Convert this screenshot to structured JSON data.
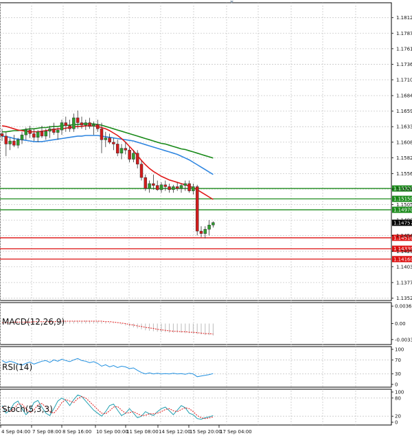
{
  "chart_data": {
    "type": "candlestick",
    "main": {
      "price_axis": {
        "range": [
          1.1348,
          1.1837
        ],
        "ticks": [
          "1.18125",
          "1.17870",
          "1.17615",
          "1.17360",
          "1.17105",
          "1.16845",
          "1.16590",
          "1.16335",
          "1.16080",
          "1.15825",
          "1.15565",
          "1.15310",
          "1.15055",
          "1.14800",
          "1.14545",
          "1.14290",
          "1.14035",
          "1.13775",
          "1.13520"
        ]
      },
      "current_price": "1.14757",
      "levels": [
        {
          "label": "1.15320",
          "value": 1.1532,
          "color": "#1a8a1a"
        },
        {
          "label": "1.15150",
          "value": 1.1515,
          "color": "#1a8a1a"
        },
        {
          "label": "1.14970",
          "value": 1.1497,
          "color": "#1a8a1a"
        },
        {
          "label": "1.14510",
          "value": 1.1451,
          "color": "#dd1111"
        },
        {
          "label": "1.14330",
          "value": 1.1433,
          "color": "#dd1111"
        },
        {
          "label": "1.14160",
          "value": 1.1416,
          "color": "#dd1111"
        }
      ],
      "candles": [
        [
          1.1622,
          1.163,
          1.161,
          1.1618
        ],
        [
          1.1618,
          1.1625,
          1.1585,
          1.1605
        ],
        [
          1.1605,
          1.1615,
          1.1595,
          1.161
        ],
        [
          1.161,
          1.162,
          1.16,
          1.1603
        ],
        [
          1.1603,
          1.1615,
          1.1598,
          1.1612
        ],
        [
          1.1612,
          1.1625,
          1.1605,
          1.162
        ],
        [
          1.162,
          1.1632,
          1.1612,
          1.1628
        ],
        [
          1.1628,
          1.1635,
          1.1615,
          1.1622
        ],
        [
          1.1622,
          1.163,
          1.161,
          1.1616
        ],
        [
          1.1616,
          1.1628,
          1.1608,
          1.1625
        ],
        [
          1.1625,
          1.1635,
          1.1615,
          1.1618
        ],
        [
          1.1618,
          1.163,
          1.1612,
          1.1626
        ],
        [
          1.1626,
          1.1635,
          1.1615,
          1.163
        ],
        [
          1.163,
          1.164,
          1.162,
          1.1624
        ],
        [
          1.1624,
          1.1632,
          1.1612,
          1.1628
        ],
        [
          1.1628,
          1.1645,
          1.162,
          1.164
        ],
        [
          1.164,
          1.165,
          1.1625,
          1.1635
        ],
        [
          1.1635,
          1.1645,
          1.1625,
          1.163
        ],
        [
          1.163,
          1.1655,
          1.1625,
          1.1648
        ],
        [
          1.1648,
          1.166,
          1.163,
          1.164
        ],
        [
          1.164,
          1.165,
          1.163,
          1.1636
        ],
        [
          1.1636,
          1.1645,
          1.1628,
          1.164
        ],
        [
          1.164,
          1.1648,
          1.163,
          1.1634
        ],
        [
          1.1634,
          1.1642,
          1.162,
          1.1637
        ],
        [
          1.1637,
          1.1645,
          1.1625,
          1.163
        ],
        [
          1.163,
          1.164,
          1.159,
          1.1612
        ],
        [
          1.1612,
          1.1625,
          1.16,
          1.1615
        ],
        [
          1.1615,
          1.1622,
          1.1605,
          1.1608
        ],
        [
          1.1608,
          1.1615,
          1.1595,
          1.1605
        ],
        [
          1.1605,
          1.1612,
          1.1585,
          1.159
        ],
        [
          1.159,
          1.1605,
          1.158,
          1.1598
        ],
        [
          1.1598,
          1.1608,
          1.1588,
          1.1595
        ],
        [
          1.1595,
          1.16,
          1.1575,
          1.158
        ],
        [
          1.158,
          1.1595,
          1.1575,
          1.159
        ],
        [
          1.159,
          1.1595,
          1.1565,
          1.1572
        ],
        [
          1.1572,
          1.1578,
          1.1545,
          1.155
        ],
        [
          1.155,
          1.1555,
          1.1528,
          1.1532
        ],
        [
          1.1532,
          1.1545,
          1.1525,
          1.154
        ],
        [
          1.154,
          1.1555,
          1.153,
          1.1537
        ],
        [
          1.1537,
          1.1545,
          1.1528,
          1.153
        ],
        [
          1.153,
          1.1542,
          1.1525,
          1.1538
        ],
        [
          1.1538,
          1.1545,
          1.1528,
          1.1535
        ],
        [
          1.1535,
          1.154,
          1.1525,
          1.153
        ],
        [
          1.153,
          1.1538,
          1.1525,
          1.1535
        ],
        [
          1.1535,
          1.1542,
          1.1528,
          1.1532
        ],
        [
          1.1532,
          1.154,
          1.1525,
          1.1537
        ],
        [
          1.1537,
          1.1545,
          1.1528,
          1.154
        ],
        [
          1.154,
          1.1545,
          1.1525,
          1.1528
        ],
        [
          1.1528,
          1.154,
          1.1522,
          1.1535
        ],
        [
          1.1535,
          1.1538,
          1.1455,
          1.1462
        ],
        [
          1.1462,
          1.147,
          1.1452,
          1.1458
        ],
        [
          1.1458,
          1.147,
          1.145,
          1.1465
        ],
        [
          1.1465,
          1.148,
          1.1455,
          1.1472
        ],
        [
          1.1472,
          1.1478,
          1.1468,
          1.1476
        ]
      ],
      "ma_green": [
        1.1625,
        1.1625,
        1.1626,
        1.1627,
        1.1627,
        1.1628,
        1.1629,
        1.163,
        1.163,
        1.1631,
        1.1632,
        1.1632,
        1.1633,
        1.1634,
        1.1634,
        1.1635,
        1.1636,
        1.1636,
        1.1637,
        1.1637,
        1.1638,
        1.1638,
        1.1638,
        1.1638,
        1.1637,
        1.1636,
        1.1634,
        1.1632,
        1.163,
        1.1628,
        1.1626,
        1.1624,
        1.1622,
        1.162,
        1.1618,
        1.1616,
        1.1614,
        1.1612,
        1.161,
        1.1608,
        1.1606,
        1.1605,
        1.1603,
        1.1601,
        1.1599,
        1.1597,
        1.1596,
        1.1594,
        1.1592,
        1.159,
        1.1588,
        1.1586,
        1.1584,
        1.1582
      ],
      "ma_blue": [
        1.1618,
        1.1617,
        1.1616,
        1.1614,
        1.1613,
        1.1612,
        1.1611,
        1.161,
        1.1609,
        1.1609,
        1.1609,
        1.161,
        1.1611,
        1.1612,
        1.1613,
        1.1614,
        1.1615,
        1.1616,
        1.1617,
        1.1618,
        1.1618,
        1.1619,
        1.1619,
        1.1619,
        1.1619,
        1.1618,
        1.1617,
        1.1616,
        1.1615,
        1.1614,
        1.1613,
        1.1612,
        1.1611,
        1.161,
        1.1608,
        1.1606,
        1.1604,
        1.1602,
        1.16,
        1.1598,
        1.1596,
        1.1594,
        1.1592,
        1.159,
        1.1588,
        1.1585,
        1.1582,
        1.1579,
        1.1575,
        1.1571,
        1.1567,
        1.1563,
        1.1559,
        1.1555
      ],
      "ma_red": [
        1.1635,
        1.1634,
        1.1632,
        1.163,
        1.1628,
        1.1627,
        1.1626,
        1.1625,
        1.1625,
        1.1625,
        1.1626,
        1.1627,
        1.1628,
        1.1629,
        1.163,
        1.163,
        1.1631,
        1.1632,
        1.1633,
        1.1634,
        1.1634,
        1.1635,
        1.1635,
        1.1635,
        1.1634,
        1.1632,
        1.163,
        1.1627,
        1.1623,
        1.1619,
        1.1614,
        1.1608,
        1.1601,
        1.1594,
        1.1586,
        1.1578,
        1.1571,
        1.1565,
        1.156,
        1.1556,
        1.1552,
        1.1549,
        1.1546,
        1.1544,
        1.1542,
        1.154,
        1.1538,
        1.1536,
        1.1533,
        1.153,
        1.1526,
        1.1522,
        1.1518,
        1.1514
      ]
    },
    "macd": {
      "label": "MACD(12,26,9)",
      "ticks": [
        "0.003639",
        "0.00",
        "-0.00334"
      ],
      "range": [
        -0.0038,
        0.0038
      ],
      "histogram": [
        0.0002,
        0.0002,
        0.0003,
        0.0003,
        0.0003,
        0.0003,
        0.0004,
        0.0004,
        0.0004,
        0.0004,
        0.0004,
        0.0004,
        0.0005,
        0.0005,
        0.0005,
        0.0005,
        0.0005,
        0.0005,
        0.0005,
        0.0006,
        0.0006,
        0.0006,
        0.0006,
        0.0005,
        0.0005,
        0.0004,
        0.0003,
        0.0002,
        0.0001,
        0.0,
        -0.0002,
        -0.0004,
        -0.0006,
        -0.0008,
        -0.001,
        -0.0012,
        -0.0014,
        -0.0015,
        -0.0016,
        -0.0017,
        -0.0018,
        -0.0018,
        -0.0019,
        -0.0019,
        -0.0019,
        -0.0019,
        -0.002,
        -0.002,
        -0.0021,
        -0.0022,
        -0.0023,
        -0.0024,
        -0.0024,
        -0.0025
      ],
      "signal": [
        0.0002,
        0.0002,
        0.0002,
        0.0003,
        0.0003,
        0.0003,
        0.0003,
        0.0003,
        0.0004,
        0.0004,
        0.0004,
        0.0004,
        0.0004,
        0.0004,
        0.0004,
        0.0005,
        0.0005,
        0.0005,
        0.0005,
        0.0005,
        0.0005,
        0.0005,
        0.0005,
        0.0005,
        0.0005,
        0.0005,
        0.0004,
        0.0004,
        0.0003,
        0.0002,
        0.0001,
        0.0,
        -0.0002,
        -0.0003,
        -0.0005,
        -0.0006,
        -0.0008,
        -0.0009,
        -0.001,
        -0.0012,
        -0.0013,
        -0.0014,
        -0.0015,
        -0.0016,
        -0.0016,
        -0.0017,
        -0.0017,
        -0.0018,
        -0.0018,
        -0.0019,
        -0.002,
        -0.0021,
        -0.0021,
        -0.0022
      ]
    },
    "rsi": {
      "label": "RSI(14)",
      "ticks": [
        "100",
        "70",
        "30",
        "0"
      ],
      "range": [
        0,
        100
      ],
      "values": [
        68,
        62,
        66,
        63,
        58,
        55,
        60,
        64,
        58,
        62,
        66,
        68,
        63,
        70,
        66,
        72,
        68,
        65,
        70,
        74,
        68,
        66,
        62,
        65,
        60,
        52,
        56,
        50,
        54,
        48,
        52,
        50,
        45,
        47,
        40,
        34,
        30,
        33,
        30,
        32,
        30,
        31,
        30,
        32,
        30,
        31,
        29,
        32,
        30,
        22,
        24,
        26,
        28,
        31
      ]
    },
    "stoch": {
      "label": "Stoch(5,3,3)",
      "ticks": [
        "100",
        "80",
        "20",
        "0"
      ],
      "range": [
        0,
        100
      ],
      "k": [
        55,
        30,
        40,
        62,
        70,
        45,
        25,
        38,
        65,
        72,
        50,
        30,
        22,
        45,
        70,
        80,
        72,
        55,
        75,
        90,
        85,
        70,
        55,
        40,
        30,
        20,
        35,
        55,
        60,
        40,
        22,
        30,
        45,
        30,
        15,
        20,
        35,
        28,
        22,
        35,
        45,
        50,
        38,
        25,
        40,
        55,
        48,
        30,
        25,
        12,
        10,
        15,
        18,
        22
      ],
      "d": [
        50,
        40,
        35,
        45,
        60,
        60,
        45,
        32,
        40,
        58,
        62,
        50,
        35,
        30,
        45,
        65,
        75,
        70,
        65,
        78,
        85,
        80,
        68,
        55,
        42,
        30,
        28,
        38,
        50,
        52,
        40,
        30,
        32,
        35,
        28,
        22,
        23,
        28,
        28,
        30,
        35,
        42,
        45,
        38,
        35,
        42,
        48,
        45,
        35,
        22,
        15,
        12,
        14,
        18
      ]
    },
    "time_axis": [
      "4 Sep 04:00",
      "7 Sep 08:00",
      "8 Sep 16:00",
      "10 Sep 00:00",
      "11 Sep 08:00",
      "14 Sep 12:00",
      "15 Sep 20:00",
      "17 Sep 04:00"
    ]
  }
}
